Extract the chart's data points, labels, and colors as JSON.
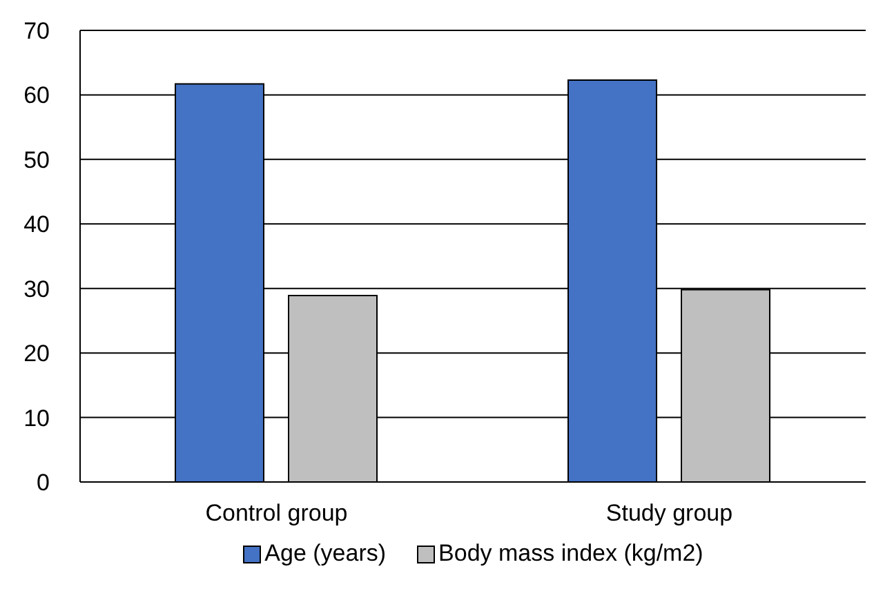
{
  "chart_data": {
    "type": "bar",
    "categories": [
      "Control group",
      "Study group"
    ],
    "series": [
      {
        "name": "Age (years)",
        "color": "#4472c4",
        "values": [
          61.7,
          62.3
        ]
      },
      {
        "name": "Body mass index (kg/m2)",
        "color": "#bfbfbf",
        "values": [
          28.9,
          29.8
        ]
      }
    ],
    "ylim": [
      0,
      70
    ],
    "yticks": [
      0,
      10,
      20,
      30,
      40,
      50,
      60,
      70
    ],
    "grid": "y",
    "legend": "bottom"
  }
}
